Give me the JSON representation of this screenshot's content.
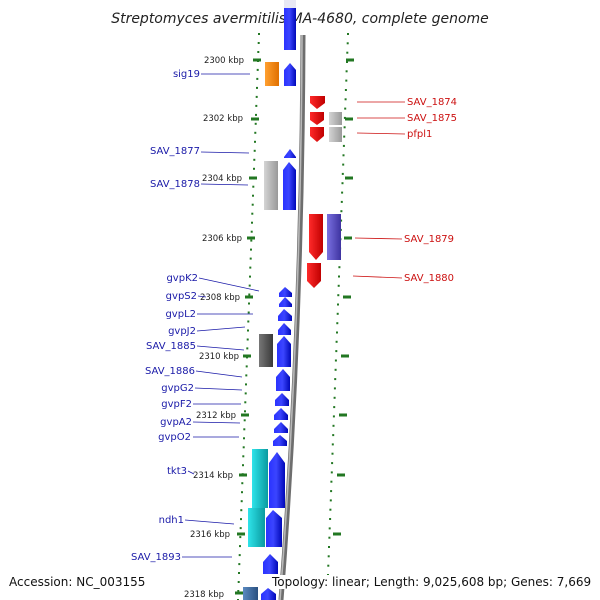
{
  "title": "Streptomyces avermitilis MA-4680, complete genome",
  "accession": "Accession: NC_003155",
  "topology": "Topology: linear; Length: 9,025,608 bp; Genes: 7,669",
  "ticks": [
    {
      "label": "2300 kbp"
    },
    {
      "label": "2302 kbp"
    },
    {
      "label": "2304 kbp"
    },
    {
      "label": "2306 kbp"
    },
    {
      "label": "2308 kbp"
    },
    {
      "label": "2310 kbp"
    },
    {
      "label": "2312 kbp"
    },
    {
      "label": "2314 kbp"
    },
    {
      "label": "2316 kbp"
    },
    {
      "label": "2318 kbp"
    }
  ],
  "genes_left": [
    {
      "name": "sig19"
    },
    {
      "name": "SAV_1877"
    },
    {
      "name": "SAV_1878"
    },
    {
      "name": "gvpK2"
    },
    {
      "name": "gvpS2"
    },
    {
      "name": "gvpL2"
    },
    {
      "name": "gvpJ2"
    },
    {
      "name": "SAV_1885"
    },
    {
      "name": "SAV_1886"
    },
    {
      "name": "gvpG2"
    },
    {
      "name": "gvpF2"
    },
    {
      "name": "gvpA2"
    },
    {
      "name": "gvpO2"
    },
    {
      "name": "tkt3"
    },
    {
      "name": "ndh1"
    },
    {
      "name": "SAV_1893"
    }
  ],
  "genes_right": [
    {
      "name": "SAV_1874"
    },
    {
      "name": "SAV_1875"
    },
    {
      "name": "pfpl1"
    },
    {
      "name": "SAV_1879"
    },
    {
      "name": "SAV_1880"
    }
  ],
  "colors": {
    "forward_strand": "#0a14ee",
    "reverse_strand": "#ee0a0a",
    "rna_or_other": "#ff8c00",
    "hypothetical": "#b0b0b0",
    "dark_gene": "#555555",
    "cyan_gene": "#16c6cc",
    "purple_gene": "#5a4fc4",
    "steel_gene": "#3a6aa0",
    "tick_color": "#227722",
    "left_label_color": "#1a1aa8",
    "right_label_color": "#cc1111",
    "backbone": "#888888"
  }
}
